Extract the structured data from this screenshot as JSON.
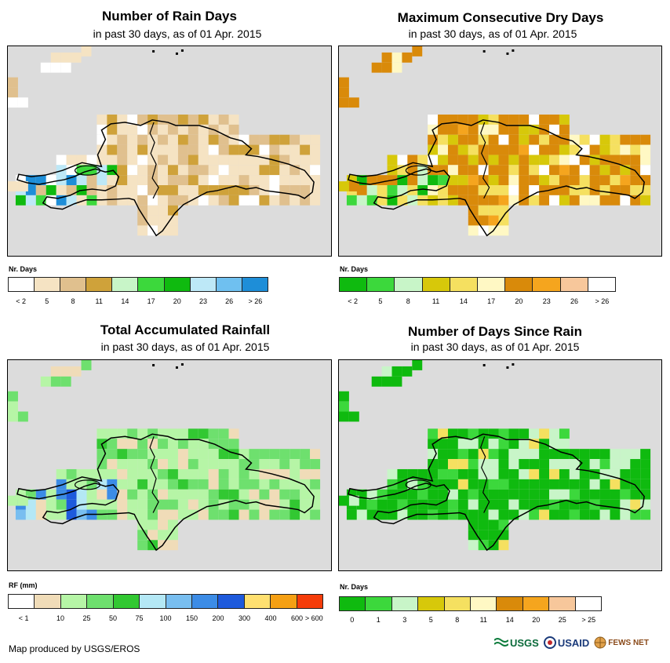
{
  "panels": [
    {
      "title": "Number of Rain Days",
      "subtitle": "in past 30 days, as of 01 Apr. 2015",
      "legend_title": "Nr. Days",
      "legend_labels": [
        "< 2",
        "5",
        "8",
        "11",
        "14",
        "17",
        "20",
        "23",
        "26",
        "> 26"
      ],
      "legend_colors": [
        "#ffffff",
        "#f5e3c3",
        "#e0c08e",
        "#cfa23a",
        "#c8f5c8",
        "#3cd83c",
        "#0fba0f",
        "#bde8f7",
        "#6fc0f0",
        "#1e8ed8"
      ],
      "legend_label_mode": "box"
    },
    {
      "title": "Maximum Consecutive Dry Days",
      "subtitle": "in past 30 days, as of 01 Apr. 2015",
      "legend_title": "Nr. Days",
      "legend_labels": [
        "< 2",
        "5",
        "8",
        "11",
        "14",
        "17",
        "20",
        "23",
        "26",
        "> 26"
      ],
      "legend_colors": [
        "#0fba0f",
        "#3cd83c",
        "#c8f5c8",
        "#d7c80a",
        "#f5e060",
        "#fff8c4",
        "#d98a0a",
        "#f5a51e",
        "#f7c79b",
        "#ffffff"
      ],
      "legend_label_mode": "box"
    },
    {
      "title": "Total Accumulated Rainfall",
      "subtitle": "in past 30 days, as of 01 Apr. 2015",
      "legend_title": "RF (mm)",
      "legend_labels": [
        "< 1",
        "10",
        "25",
        "50",
        "75",
        "100",
        "150",
        "200",
        "300",
        "400",
        "600",
        "> 600"
      ],
      "legend_colors": [
        "#ffffff",
        "#f0dcb8",
        "#b6f5a6",
        "#6ee06e",
        "#32c832",
        "#b4e8f5",
        "#78bef0",
        "#3c8ce6",
        "#1e5adc",
        "#ffe070",
        "#f5a014",
        "#f53c0a"
      ],
      "legend_label_mode": "edge"
    },
    {
      "title": "Number of Days Since Rain",
      "subtitle": "in past 30 days, as of 01 Apr. 2015",
      "legend_title": "Nr. Days",
      "legend_labels": [
        "0",
        "1",
        "3",
        "5",
        "8",
        "11",
        "14",
        "20",
        "25",
        "> 25"
      ],
      "legend_colors": [
        "#0fba0f",
        "#3cd83c",
        "#c8f5c8",
        "#d7c80a",
        "#f5e060",
        "#fff8c4",
        "#d98a0a",
        "#f5a51e",
        "#f7c79b",
        "#ffffff"
      ],
      "legend_label_mode": "box"
    }
  ],
  "credit": "Map produced by USGS/EROS",
  "logos": [
    "USGS",
    "USAID",
    "FEWS NET"
  ]
}
